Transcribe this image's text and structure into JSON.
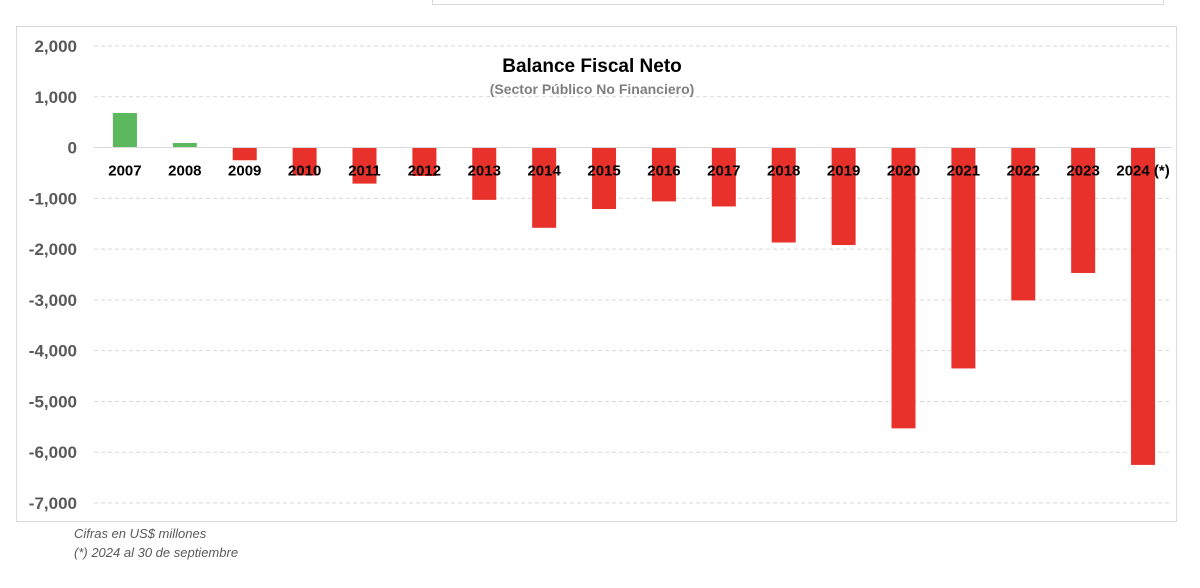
{
  "notes": {
    "units": "Cifras en US$ millones",
    "footnote": "(*) 2024 al 30 de septiembre"
  },
  "colors": {
    "positive": "#5cb85c",
    "negative": "#e8312a",
    "grid": "#d9d9d9",
    "axis_text": "#595959",
    "title": "#000000",
    "subtitle": "#7f7f7f"
  },
  "chart_data": {
    "type": "bar",
    "title": "Balance Fiscal Neto",
    "subtitle": "(Sector Público No Financiero)",
    "categories": [
      "2007",
      "2008",
      "2009",
      "2010",
      "2011",
      "2012",
      "2013",
      "2014",
      "2015",
      "2016",
      "2017",
      "2018",
      "2019",
      "2020",
      "2021",
      "2022",
      "2023",
      "2024 (*)"
    ],
    "values": [
      680,
      90,
      -250,
      -550,
      -710,
      -560,
      -1030,
      -1580,
      -1210,
      -1060,
      -1160,
      -1870,
      -1920,
      -5530,
      -4350,
      -3010,
      -2470,
      -6250
    ],
    "ylim": [
      -7000,
      2000
    ],
    "yticks": [
      2000,
      1000,
      0,
      -1000,
      -2000,
      -3000,
      -4000,
      -5000,
      -6000,
      -7000
    ],
    "ytick_labels": [
      "2,000",
      "1,000",
      "0",
      "-1,000",
      "-2,000",
      "-3,000",
      "-4,000",
      "-5,000",
      "-6,000",
      "-7,000"
    ],
    "grid": true,
    "grid_style": "dashed",
    "legend": "none"
  }
}
